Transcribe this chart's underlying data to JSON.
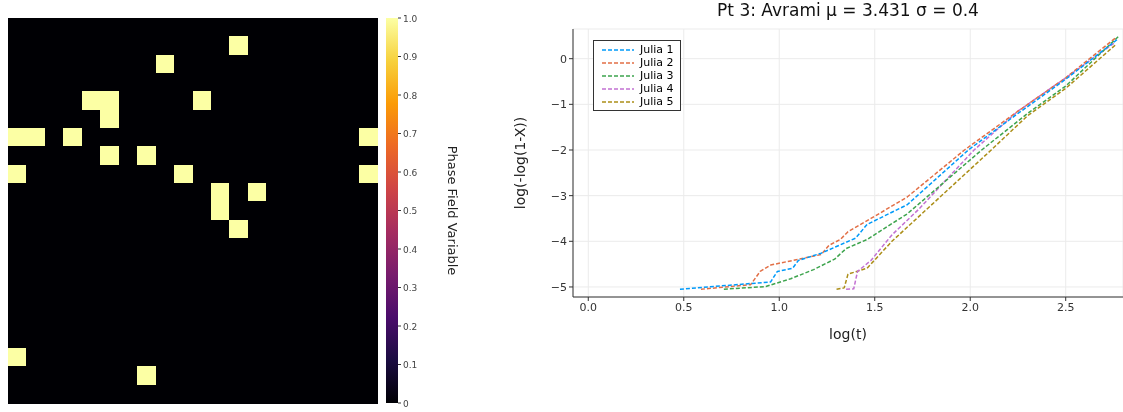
{
  "chart_data": [
    {
      "type": "heatmap",
      "clabel": "Phase Field Variable",
      "categories": [
        null,
        null,
        null,
        null,
        null,
        null,
        null,
        null,
        null,
        null,
        null,
        null,
        null,
        null,
        null,
        null,
        null,
        null,
        null,
        null
      ],
      "y_categories": [
        null,
        null,
        null,
        null,
        null,
        null,
        null,
        null,
        null,
        null,
        null,
        null,
        null,
        null,
        null,
        null,
        null,
        null,
        null,
        null,
        null
      ],
      "cells": [
        [
          0,
          0,
          0,
          0,
          0,
          0,
          0,
          0,
          0,
          0,
          0,
          0,
          0,
          0,
          0,
          0,
          0,
          0,
          0,
          0
        ],
        [
          0,
          0,
          0,
          0,
          0,
          0,
          0,
          0,
          0,
          0,
          0,
          0,
          1,
          0,
          0,
          0,
          0,
          0,
          0,
          0
        ],
        [
          0,
          0,
          0,
          0,
          0,
          0,
          0,
          0,
          1,
          0,
          0,
          0,
          0,
          0,
          0,
          0,
          0,
          0,
          0,
          0
        ],
        [
          0,
          0,
          0,
          0,
          0,
          0,
          0,
          0,
          0,
          0,
          0,
          0,
          0,
          0,
          0,
          0,
          0,
          0,
          0,
          0
        ],
        [
          0,
          0,
          0,
          0,
          1,
          1,
          0,
          0,
          0,
          0,
          1,
          0,
          0,
          0,
          0,
          0,
          0,
          0,
          0,
          0
        ],
        [
          0,
          0,
          0,
          0,
          0,
          1,
          0,
          0,
          0,
          0,
          0,
          0,
          0,
          0,
          0,
          0,
          0,
          0,
          0,
          0
        ],
        [
          1,
          1,
          0,
          1,
          0,
          0,
          0,
          0,
          0,
          0,
          0,
          0,
          0,
          0,
          0,
          0,
          0,
          0,
          0,
          1
        ],
        [
          0,
          0,
          0,
          0,
          0,
          1,
          0,
          1,
          0,
          0,
          0,
          0,
          0,
          0,
          0,
          0,
          0,
          0,
          0,
          0
        ],
        [
          1,
          0,
          0,
          0,
          0,
          0,
          0,
          0,
          0,
          1,
          0,
          0,
          0,
          0,
          0,
          0,
          0,
          0,
          0,
          1
        ],
        [
          0,
          0,
          0,
          0,
          0,
          0,
          0,
          0,
          0,
          0,
          0,
          1,
          0,
          1,
          0,
          0,
          0,
          0,
          0,
          0
        ],
        [
          0,
          0,
          0,
          0,
          0,
          0,
          0,
          0,
          0,
          0,
          0,
          1,
          0,
          0,
          0,
          0,
          0,
          0,
          0,
          0
        ],
        [
          0,
          0,
          0,
          0,
          0,
          0,
          0,
          0,
          0,
          0,
          0,
          0,
          1,
          0,
          0,
          0,
          0,
          0,
          0,
          0
        ],
        [
          0,
          0,
          0,
          0,
          0,
          0,
          0,
          0,
          0,
          0,
          0,
          0,
          0,
          0,
          0,
          0,
          0,
          0,
          0,
          0
        ],
        [
          0,
          0,
          0,
          0,
          0,
          0,
          0,
          0,
          0,
          0,
          0,
          0,
          0,
          0,
          0,
          0,
          0,
          0,
          0,
          0
        ],
        [
          0,
          0,
          0,
          0,
          0,
          0,
          0,
          0,
          0,
          0,
          0,
          0,
          0,
          0,
          0,
          0,
          0,
          0,
          0,
          0
        ],
        [
          0,
          0,
          0,
          0,
          0,
          0,
          0,
          0,
          0,
          0,
          0,
          0,
          0,
          0,
          0,
          0,
          0,
          0,
          0,
          0
        ],
        [
          0,
          0,
          0,
          0,
          0,
          0,
          0,
          0,
          0,
          0,
          0,
          0,
          0,
          0,
          0,
          0,
          0,
          0,
          0,
          0
        ],
        [
          0,
          0,
          0,
          0,
          0,
          0,
          0,
          0,
          0,
          0,
          0,
          0,
          0,
          0,
          0,
          0,
          0,
          0,
          0,
          0
        ],
        [
          1,
          0,
          0,
          0,
          0,
          0,
          0,
          0,
          0,
          0,
          0,
          0,
          0,
          0,
          0,
          0,
          0,
          0,
          0,
          0
        ],
        [
          0,
          0,
          0,
          0,
          0,
          0,
          0,
          1,
          0,
          0,
          0,
          0,
          0,
          0,
          0,
          0,
          0,
          0,
          0,
          0
        ],
        [
          0,
          0,
          0,
          0,
          0,
          0,
          0,
          0,
          0,
          0,
          0,
          0,
          0,
          0,
          0,
          0,
          0,
          0,
          0,
          0
        ]
      ],
      "clim": [
        0,
        1
      ],
      "cticks": [
        0,
        0.1,
        0.2,
        0.3,
        0.4,
        0.5,
        0.6,
        0.7,
        0.8,
        0.9,
        {
          "value": 1,
          "label": "1.0"
        }
      ]
    },
    {
      "type": "line",
      "title": "Pt 3: Avrami  μ = 3.431  σ = 0.4",
      "xlabel": "log(t)",
      "ylabel": "log(-log(1-X))",
      "xlim": [
        -0.08,
        2.8
      ],
      "ylim": [
        -5.22,
        0.65
      ],
      "xticks": [
        {
          "value": 0,
          "label": "0.0"
        },
        0.5,
        {
          "value": 1,
          "label": "1.0"
        },
        1.5,
        {
          "value": 2,
          "label": "2.0"
        },
        2.5
      ],
      "yticks": [
        {
          "value": -5,
          "label": "−5"
        },
        {
          "value": -4,
          "label": "−4"
        },
        {
          "value": -3,
          "label": "−3"
        },
        {
          "value": -2,
          "label": "−2"
        },
        {
          "value": -1,
          "label": "−1"
        },
        0
      ],
      "grid": true,
      "legend": "top left",
      "line_style": "dashed",
      "marker": "none",
      "series": [
        {
          "name": "Julia 1",
          "color": "#009af9",
          "x": [
            0.48,
            0.955,
            0.99,
            1.07,
            1.1,
            1.22,
            1.4,
            1.46,
            1.67,
            1.99,
            2.25,
            2.5,
            2.77
          ],
          "values": [
            -5.05,
            -4.89,
            -4.66,
            -4.59,
            -4.42,
            -4.26,
            -3.93,
            -3.63,
            -3.2,
            -2.0,
            -1.2,
            -0.45,
            0.42
          ]
        },
        {
          "name": "Julia 2",
          "color": "#e26f46",
          "x": [
            0.59,
            0.85,
            0.9,
            0.955,
            1.22,
            1.26,
            1.32,
            1.36,
            1.48,
            1.67,
            1.97,
            2.25,
            2.5,
            2.76
          ],
          "values": [
            -5.05,
            -4.95,
            -4.66,
            -4.52,
            -4.29,
            -4.09,
            -3.96,
            -3.79,
            -3.5,
            -3.03,
            -2.0,
            -1.15,
            -0.42,
            0.45
          ]
        },
        {
          "name": "Julia 3",
          "color": "#3da44d",
          "x": [
            0.71,
            0.93,
            1.06,
            1.18,
            1.29,
            1.35,
            1.46,
            1.67,
            2.06,
            2.3,
            2.5,
            2.78
          ],
          "values": [
            -5.05,
            -4.99,
            -4.82,
            -4.62,
            -4.39,
            -4.16,
            -3.96,
            -3.4,
            -2.0,
            -1.2,
            -0.6,
            0.5
          ]
        },
        {
          "name": "Julia 4",
          "color": "#c271d2",
          "x": [
            1.35,
            1.39,
            1.41,
            1.48,
            1.59,
            1.73,
            2.02,
            2.25,
            2.5,
            2.76
          ],
          "values": [
            -5.05,
            -5.04,
            -4.66,
            -4.42,
            -3.86,
            -3.3,
            -2.0,
            -1.15,
            -0.42,
            0.36
          ]
        },
        {
          "name": "Julia 5",
          "color": "#ac8e18",
          "x": [
            1.3,
            1.34,
            1.36,
            1.46,
            1.59,
            1.79,
            2.11,
            2.3,
            2.5,
            2.76
          ],
          "values": [
            -5.05,
            -5.02,
            -4.72,
            -4.59,
            -4.0,
            -3.23,
            -2.0,
            -1.25,
            -0.65,
            0.3
          ]
        }
      ]
    }
  ]
}
